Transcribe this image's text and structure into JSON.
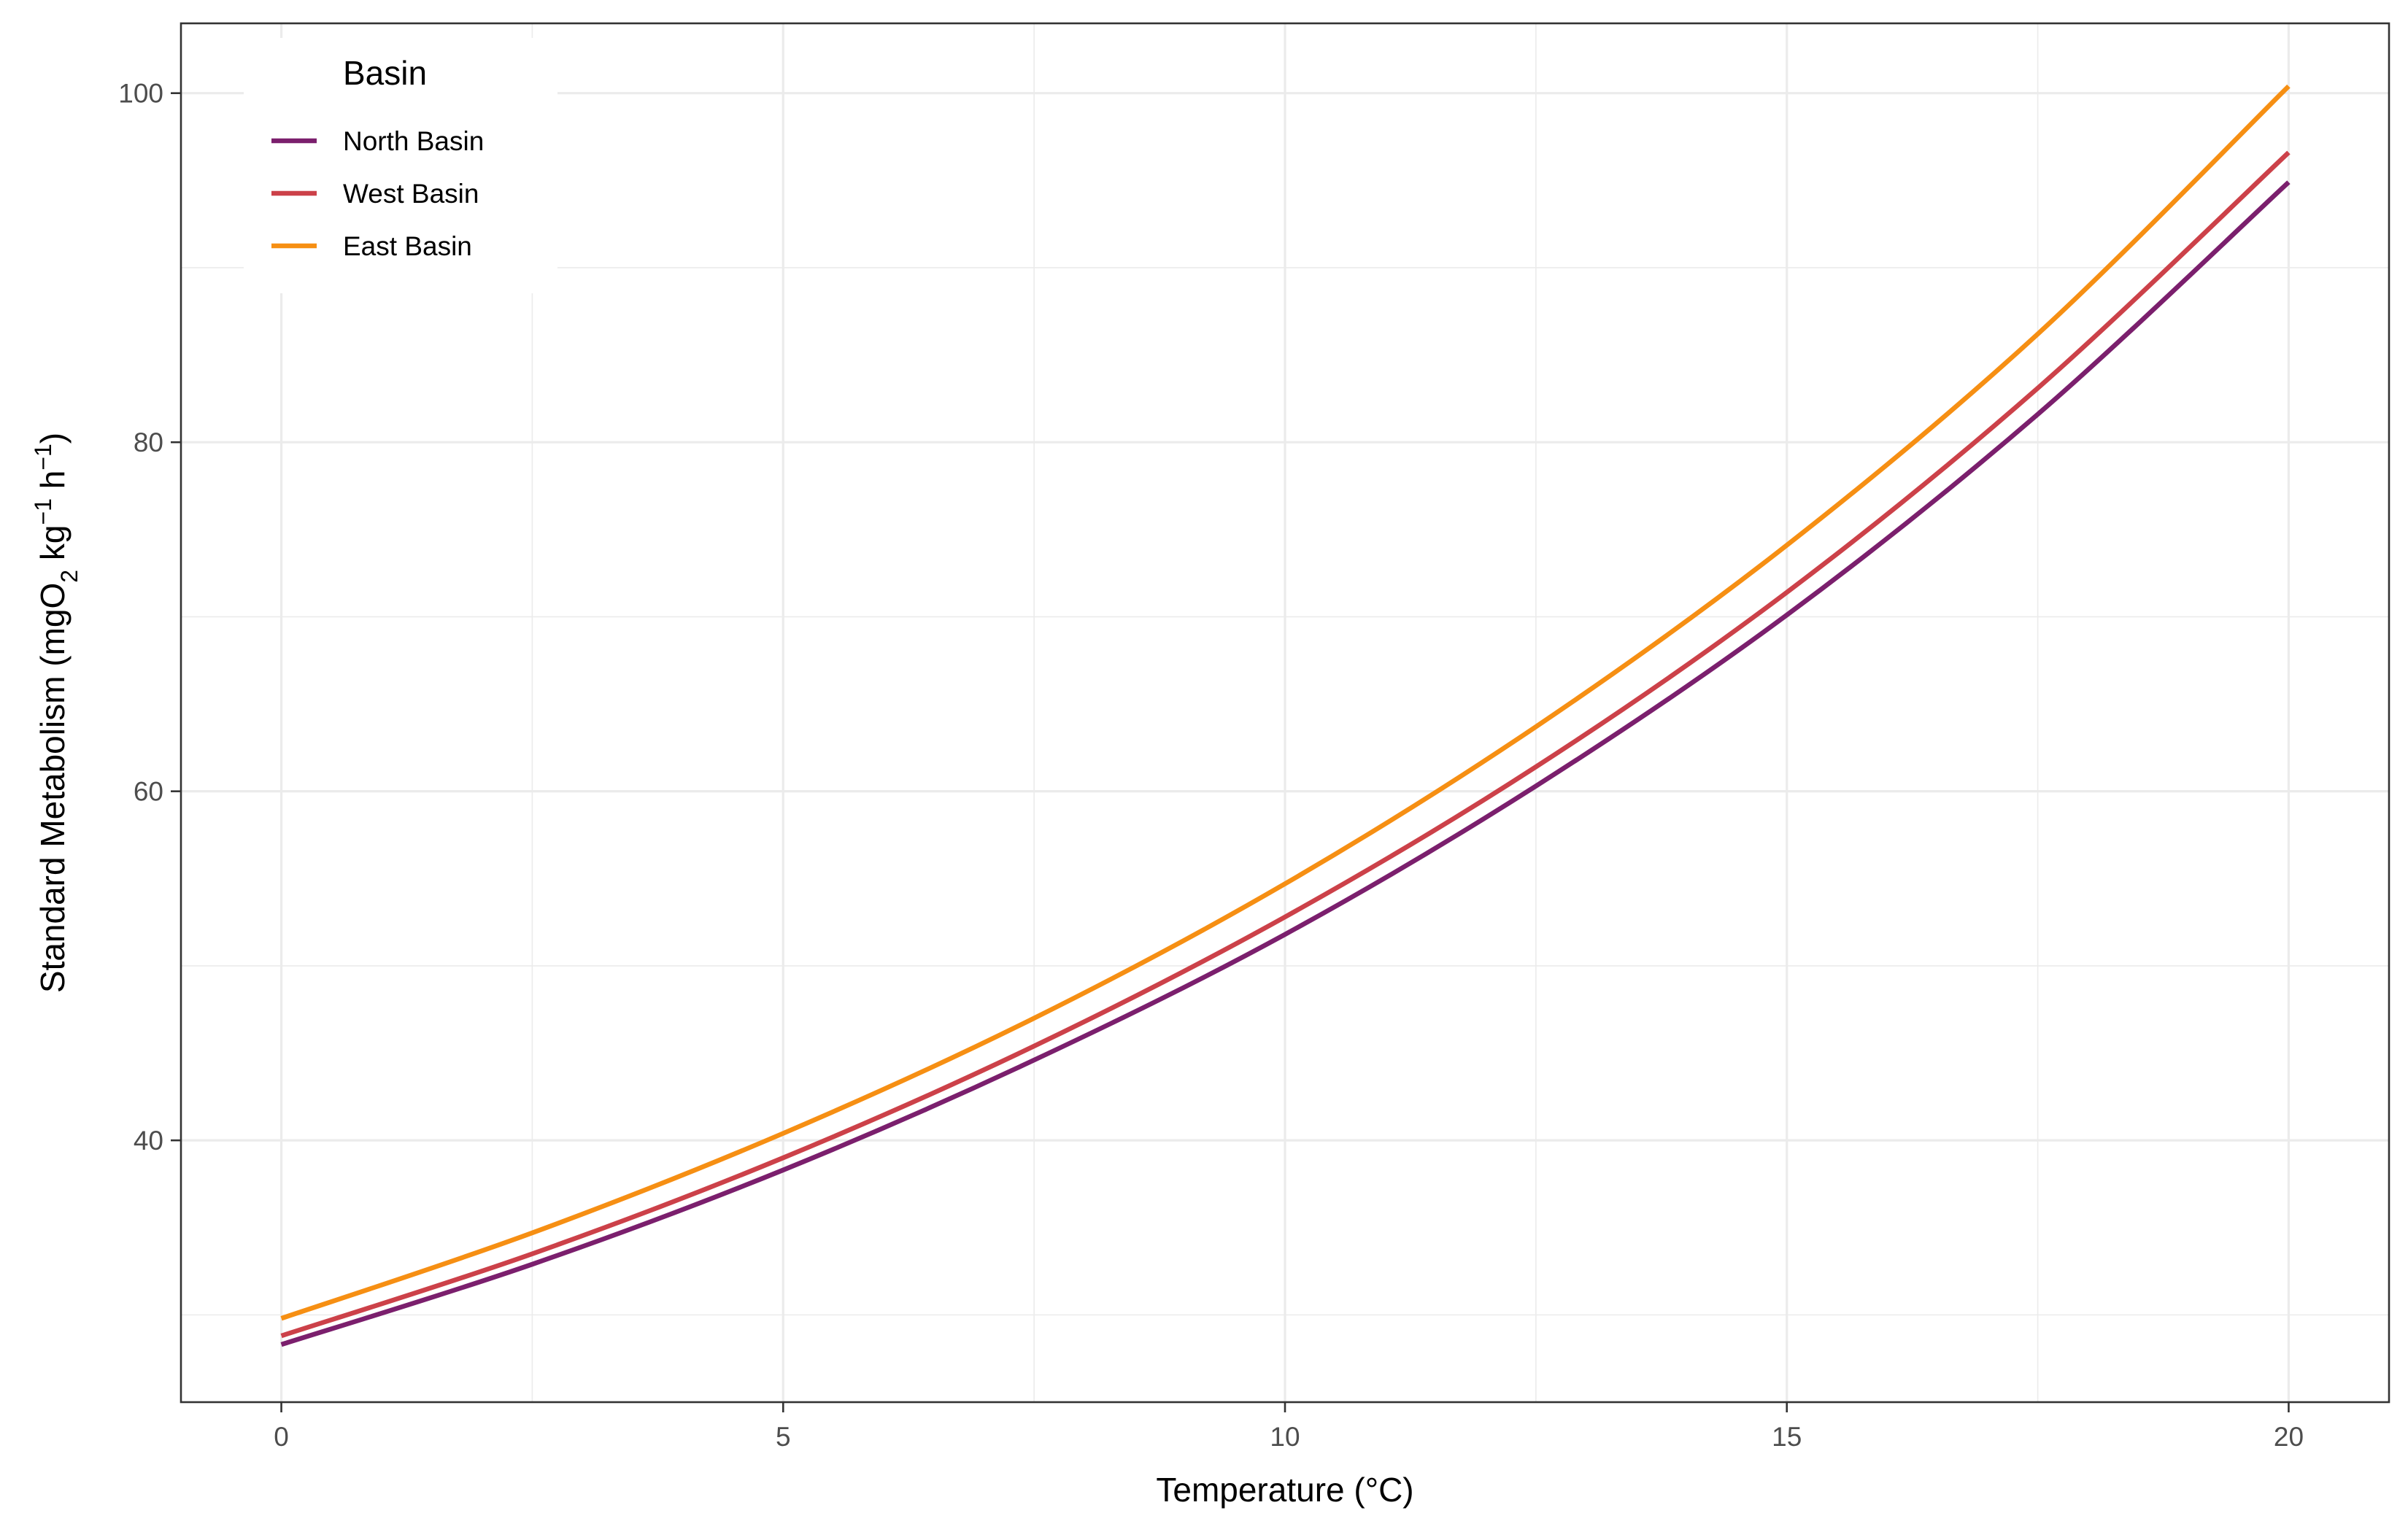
{
  "chart_data": {
    "type": "line",
    "title": "",
    "xlabel": "Temperature (°C)",
    "ylabel": {
      "p1": "Standard Metabolism (mgO",
      "sub": "2",
      "p2": " kg",
      "sup1": "−1",
      "p3": " h",
      "sup2": "−1",
      "p4": ")"
    },
    "xlim": [
      -1,
      21
    ],
    "ylim": [
      25,
      104
    ],
    "x_ticks": [
      "0",
      "5",
      "10",
      "15",
      "20"
    ],
    "y_ticks": [
      "40",
      "60",
      "80",
      "100"
    ],
    "grid": true,
    "legend": {
      "title": "Basin",
      "placement": "top-left"
    },
    "x": [
      0,
      2.5,
      5,
      7.5,
      10,
      12.5,
      15,
      17.5,
      20
    ],
    "series": [
      {
        "name": "North Basin",
        "color": "#7b1f6d",
        "values": [
          28.3,
          32.9,
          38.3,
          44.6,
          51.8,
          60.3,
          70.1,
          81.6,
          94.9
        ]
      },
      {
        "name": "West Basin",
        "color": "#cc4149",
        "values": [
          28.8,
          33.5,
          39.0,
          45.4,
          52.8,
          61.4,
          71.4,
          83.1,
          96.6
        ]
      },
      {
        "name": "East Basin",
        "color": "#f68f13",
        "values": [
          29.8,
          34.7,
          40.4,
          47.0,
          54.7,
          63.7,
          74.1,
          86.2,
          100.4
        ]
      }
    ]
  }
}
